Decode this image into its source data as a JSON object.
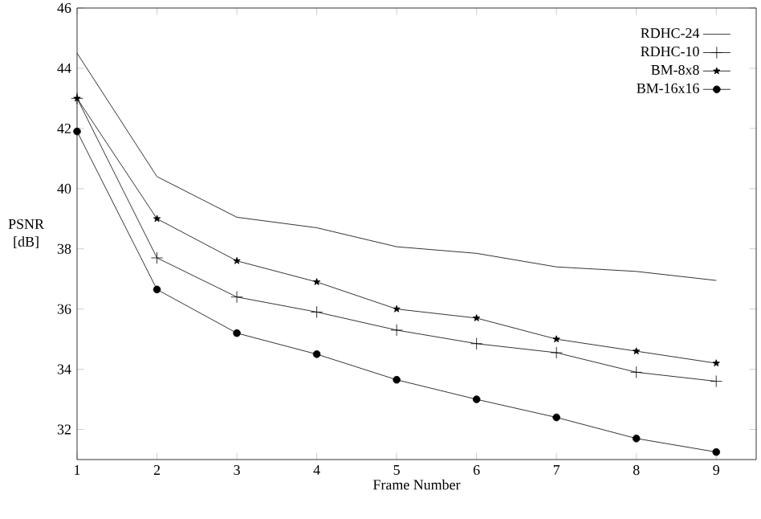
{
  "chart_data": {
    "type": "line",
    "xlabel": "Frame Number",
    "ylabel": "PSNR [dB]",
    "x": [
      1,
      2,
      3,
      4,
      5,
      6,
      7,
      8,
      9
    ],
    "xlim": [
      1,
      9.5
    ],
    "ylim": [
      31,
      46
    ],
    "xticks": [
      1,
      2,
      3,
      4,
      5,
      6,
      7,
      8,
      9
    ],
    "yticks": [
      32,
      34,
      36,
      38,
      40,
      42,
      44,
      46
    ],
    "legend": "top right",
    "line_style": "solid",
    "series": [
      {
        "name": "RDHC-24",
        "color": "#000000",
        "marker": "none",
        "values": [
          44.5,
          40.4,
          39.05,
          38.7,
          38.07,
          37.85,
          37.4,
          37.25,
          36.95
        ]
      },
      {
        "name": "RDHC-10",
        "color": "#000000",
        "marker": "cross",
        "values": [
          43.0,
          37.7,
          36.4,
          35.9,
          35.3,
          34.85,
          34.55,
          33.9,
          33.6
        ]
      },
      {
        "name": "BM-8x8",
        "color": "#000000",
        "marker": "star",
        "values": [
          43.0,
          39.0,
          37.6,
          36.9,
          36.0,
          35.7,
          35.0,
          34.6,
          34.2
        ]
      },
      {
        "name": "BM-16x16",
        "color": "#000000",
        "marker": "circle",
        "values": [
          41.9,
          36.65,
          35.2,
          34.5,
          33.65,
          33.0,
          32.4,
          31.7,
          31.25
        ]
      }
    ]
  }
}
